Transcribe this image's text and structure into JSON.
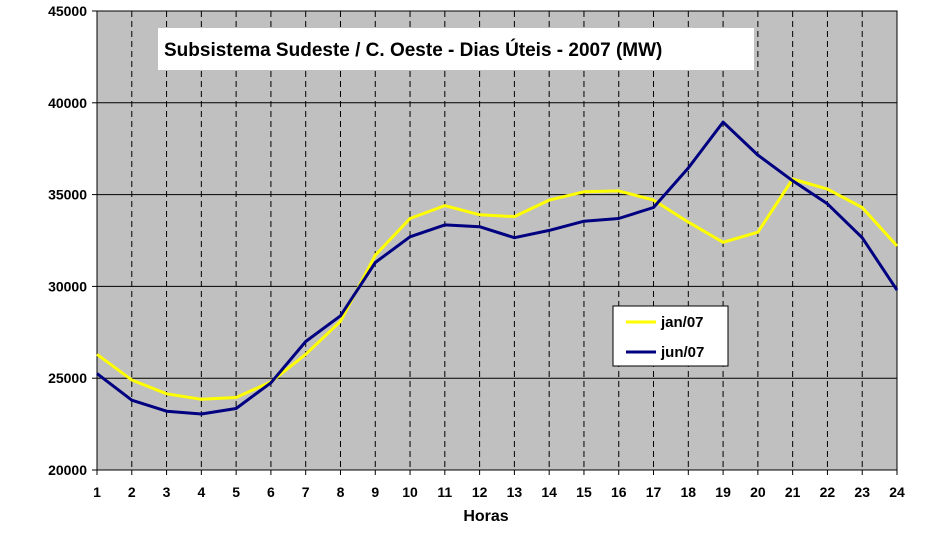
{
  "chart_data": {
    "type": "line",
    "title": "Subsistema Sudeste / C. Oeste - Dias Úteis - 2007 (MW)",
    "xlabel": "Horas",
    "ylabel": "",
    "categories": [
      "1",
      "2",
      "3",
      "4",
      "5",
      "6",
      "7",
      "8",
      "9",
      "10",
      "11",
      "12",
      "13",
      "14",
      "15",
      "16",
      "17",
      "18",
      "19",
      "20",
      "21",
      "22",
      "23",
      "24"
    ],
    "ylim": [
      20000,
      45000
    ],
    "yticks": [
      "20000",
      "25000",
      "30000",
      "35000",
      "40000",
      "45000"
    ],
    "grid": true,
    "legend_position": "center-right",
    "plot_background": "#c0c0c0",
    "series": [
      {
        "name": "jan/07",
        "color": "#ffff00",
        "values": [
          26300,
          24900,
          24150,
          23850,
          23950,
          24800,
          26300,
          28100,
          31700,
          33700,
          34400,
          33900,
          33800,
          34700,
          35150,
          35200,
          34700,
          33500,
          32400,
          32950,
          35850,
          35300,
          34300,
          32200
        ]
      },
      {
        "name": "jun/07",
        "color": "#000080",
        "values": [
          25250,
          23800,
          23200,
          23050,
          23350,
          24750,
          27000,
          28400,
          31300,
          32700,
          33350,
          33250,
          32650,
          33050,
          33550,
          33700,
          34300,
          36450,
          38950,
          37150,
          35750,
          34500,
          32650,
          29800
        ]
      }
    ]
  }
}
